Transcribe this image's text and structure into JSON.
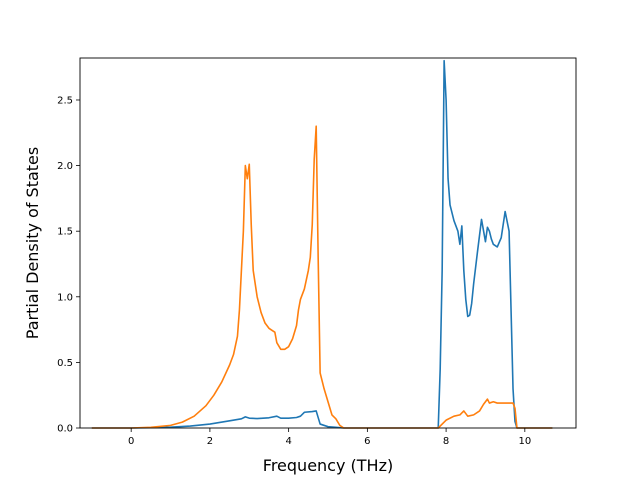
{
  "chart_data": {
    "type": "line",
    "title": "",
    "xlabel": "Frequency (THz)",
    "ylabel": "Partial Density of States",
    "xlim": [
      -1.3,
      11.3
    ],
    "ylim": [
      0,
      2.82
    ],
    "xticks": [
      0,
      2,
      4,
      6,
      8,
      10
    ],
    "xtick_labels": [
      "0",
      "2",
      "4",
      "6",
      "8",
      "10"
    ],
    "yticks": [
      0.0,
      0.5,
      1.0,
      1.5,
      2.0,
      2.5
    ],
    "ytick_labels": [
      "0.0",
      "0.5",
      "1.0",
      "1.5",
      "2.0",
      "2.5"
    ],
    "grid": false,
    "legend": "none",
    "series": [
      {
        "color": "#1f77b4",
        "x": [
          -1.0,
          0.0,
          0.5,
          1.0,
          1.5,
          2.0,
          2.5,
          2.8,
          2.9,
          3.0,
          3.2,
          3.5,
          3.7,
          3.8,
          4.0,
          4.2,
          4.3,
          4.4,
          4.6,
          4.7,
          4.8,
          5.0,
          5.2,
          5.4,
          6.0,
          7.0,
          7.8,
          7.85,
          7.9,
          7.95,
          8.0,
          8.05,
          8.1,
          8.2,
          8.3,
          8.35,
          8.4,
          8.45,
          8.5,
          8.55,
          8.6,
          8.65,
          8.7,
          8.8,
          8.9,
          9.0,
          9.05,
          9.1,
          9.15,
          9.2,
          9.3,
          9.4,
          9.5,
          9.6,
          9.7,
          9.75,
          9.8,
          9.85,
          9.9,
          10.0,
          10.5,
          10.7
        ],
        "y": [
          0.0,
          0.0,
          0.002,
          0.006,
          0.015,
          0.03,
          0.055,
          0.07,
          0.085,
          0.075,
          0.072,
          0.078,
          0.09,
          0.075,
          0.075,
          0.08,
          0.09,
          0.12,
          0.125,
          0.13,
          0.03,
          0.01,
          0.005,
          0.0,
          0.0,
          0.0,
          0.0,
          0.45,
          1.2,
          2.8,
          2.5,
          1.9,
          1.7,
          1.58,
          1.5,
          1.4,
          1.54,
          1.2,
          0.98,
          0.85,
          0.86,
          0.95,
          1.1,
          1.35,
          1.59,
          1.42,
          1.53,
          1.5,
          1.44,
          1.4,
          1.38,
          1.45,
          1.65,
          1.5,
          0.3,
          0.05,
          0.0,
          0.0,
          0.0,
          0.0,
          0.0,
          0.0
        ]
      },
      {
        "color": "#ff7f0e",
        "x": [
          -1.0,
          0.0,
          0.5,
          1.0,
          1.3,
          1.6,
          1.9,
          2.1,
          2.3,
          2.5,
          2.6,
          2.7,
          2.75,
          2.85,
          2.9,
          2.95,
          3.0,
          3.05,
          3.1,
          3.2,
          3.3,
          3.4,
          3.5,
          3.6,
          3.65,
          3.7,
          3.8,
          3.9,
          4.0,
          4.1,
          4.2,
          4.25,
          4.3,
          4.4,
          4.5,
          4.55,
          4.6,
          4.65,
          4.7,
          4.75,
          4.8,
          4.9,
          5.0,
          5.1,
          5.2,
          5.3,
          5.4,
          6.0,
          7.0,
          7.8,
          8.0,
          8.2,
          8.35,
          8.45,
          8.55,
          8.7,
          8.85,
          8.95,
          9.05,
          9.1,
          9.2,
          9.3,
          9.4,
          9.6,
          9.7,
          9.75,
          9.8,
          10.0,
          10.7
        ],
        "y": [
          0.0,
          0.0,
          0.005,
          0.02,
          0.045,
          0.09,
          0.17,
          0.25,
          0.35,
          0.48,
          0.56,
          0.7,
          0.9,
          1.5,
          2.0,
          1.9,
          2.01,
          1.55,
          1.2,
          1.0,
          0.88,
          0.8,
          0.76,
          0.74,
          0.73,
          0.65,
          0.6,
          0.6,
          0.62,
          0.68,
          0.78,
          0.9,
          0.98,
          1.06,
          1.2,
          1.3,
          1.55,
          2.05,
          2.3,
          1.3,
          0.42,
          0.3,
          0.2,
          0.1,
          0.07,
          0.02,
          0.0,
          0.0,
          0.0,
          0.0,
          0.06,
          0.09,
          0.1,
          0.13,
          0.09,
          0.1,
          0.13,
          0.18,
          0.22,
          0.19,
          0.2,
          0.19,
          0.19,
          0.19,
          0.19,
          0.15,
          0.0,
          0.0,
          0.0
        ]
      }
    ]
  }
}
